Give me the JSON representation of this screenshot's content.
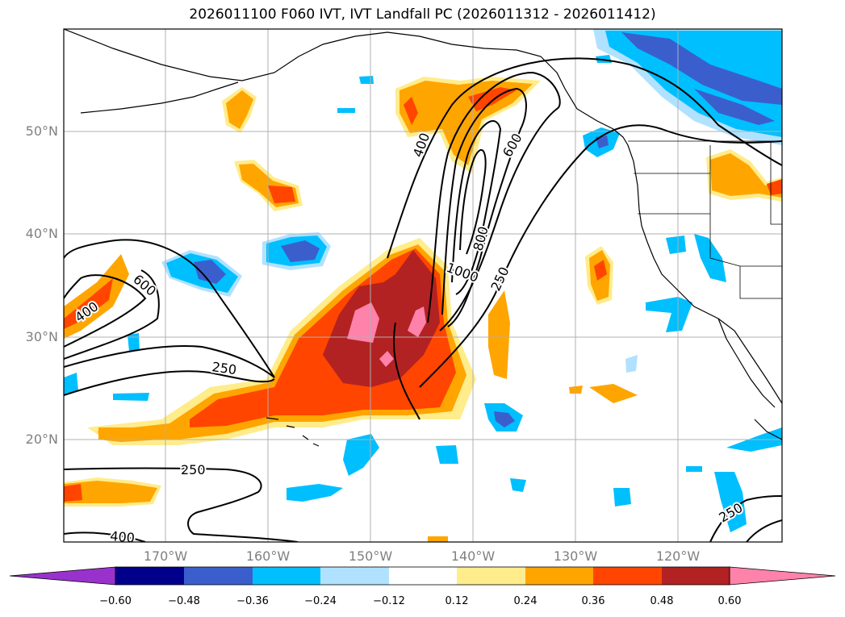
{
  "title": "2026011100 F060 IVT, IVT Landfall PC (2026011312 - 2026011412)",
  "map": {
    "lat_labels": [
      {
        "text": "50°N",
        "value": 50
      },
      {
        "text": "40°N",
        "value": 40
      },
      {
        "text": "30°N",
        "value": 30
      },
      {
        "text": "20°N",
        "value": 20
      }
    ],
    "lon_labels": [
      {
        "text": "170°W",
        "value": -170
      },
      {
        "text": "160°W",
        "value": -160
      },
      {
        "text": "150°W",
        "value": -150
      },
      {
        "text": "140°W",
        "value": -140
      },
      {
        "text": "130°W",
        "value": -130
      },
      {
        "text": "120°W",
        "value": -120
      }
    ],
    "contour_labels": [
      {
        "text": "400"
      },
      {
        "text": "600"
      },
      {
        "text": "800"
      },
      {
        "text": "1000"
      },
      {
        "text": "250"
      },
      {
        "text": "600"
      },
      {
        "text": "400"
      },
      {
        "text": "250"
      },
      {
        "text": "250"
      },
      {
        "text": "400"
      },
      {
        "text": "250"
      }
    ]
  },
  "colorbar": {
    "colors": [
      "#9932cc",
      "#00008b",
      "#3a5fcd",
      "#00bfff",
      "#b0e2ff",
      "#ffffff",
      "#ffec8b",
      "#ffa500",
      "#ff4500",
      "#b22222",
      "#ff82ab"
    ],
    "labels": [
      "−0.60",
      "−0.48",
      "−0.36",
      "−0.24",
      "−0.12",
      "0.12",
      "0.24",
      "0.36",
      "0.48",
      "0.60"
    ]
  }
}
